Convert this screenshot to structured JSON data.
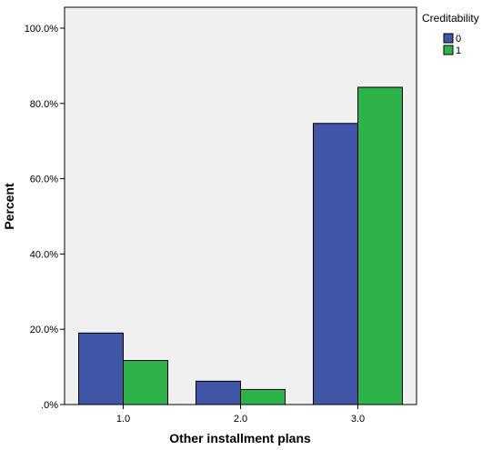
{
  "chart_data": {
    "type": "bar",
    "title": "",
    "xlabel": "Other installment plans",
    "ylabel": "Percent",
    "categories": [
      "1.0",
      "2.0",
      "3.0"
    ],
    "series": [
      {
        "name": "0",
        "color": "#3f56a8",
        "values": [
          19.0,
          6.2,
          74.7
        ]
      },
      {
        "name": "1",
        "color": "#2db34a",
        "values": [
          11.7,
          4.0,
          84.3
        ]
      }
    ],
    "ylim": [
      0,
      100
    ],
    "yticks": [
      0,
      20,
      40,
      60,
      80,
      100
    ],
    "ytick_labels": [
      ".0%",
      "20.0%",
      "40.0%",
      "60.0%",
      "80.0%",
      "100.0%"
    ],
    "legend": {
      "title": "Creditability",
      "position": "top-right"
    },
    "grid": false,
    "plot_background": "#f0f0f0"
  }
}
